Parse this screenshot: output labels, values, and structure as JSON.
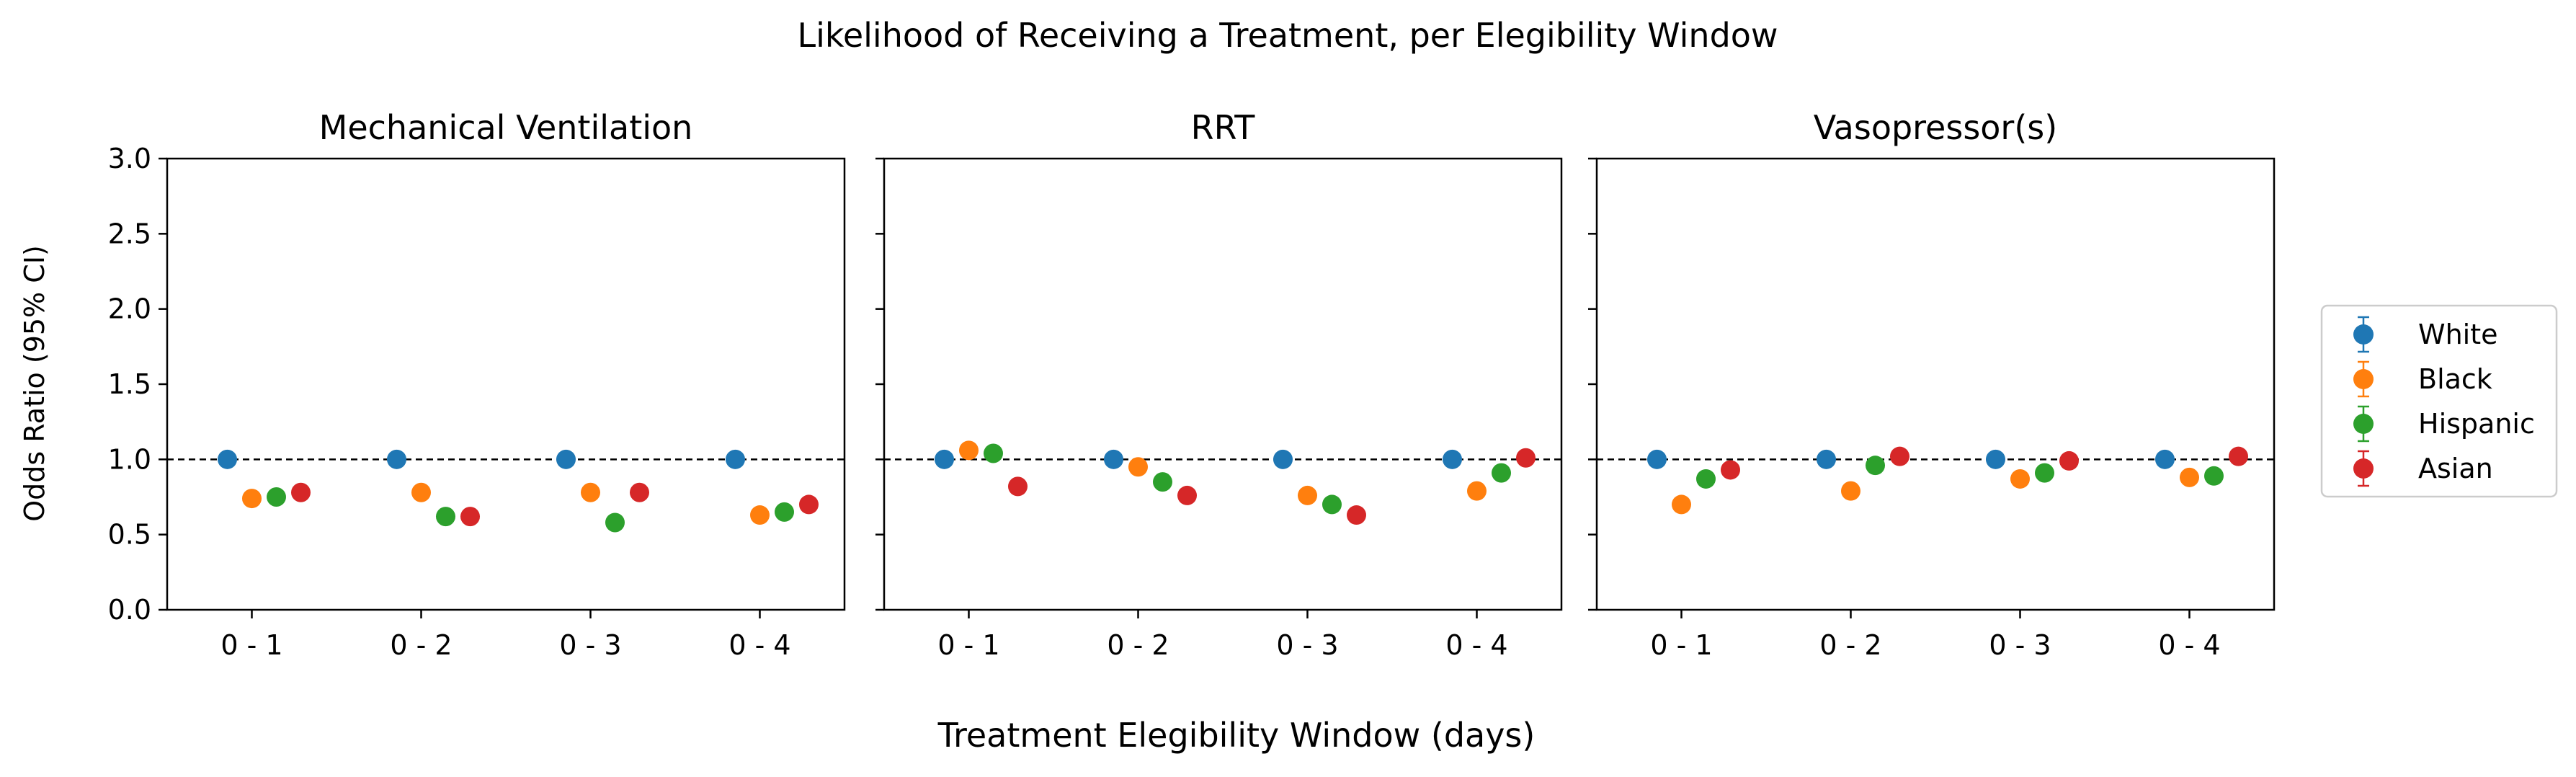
{
  "chart_data": {
    "type": "scatter",
    "title": "Likelihood of Receiving a Treatment, per Elegibility Window",
    "xlabel": "Treatment Elegibility Window (days)",
    "ylabel": "Odds Ratio (95% CI)",
    "ylim": [
      0,
      3
    ],
    "yticks": [
      "0.0",
      "0.5",
      "1.0",
      "1.5",
      "2.0",
      "2.5",
      "3.0"
    ],
    "categories": [
      "0 - 1",
      "0 - 2",
      "0 - 3",
      "0 - 4"
    ],
    "reference_line": 1.0,
    "legend_placement": "right",
    "series": [
      {
        "name": "White",
        "color": "#1f77b4"
      },
      {
        "name": "Black",
        "color": "#ff7f0e"
      },
      {
        "name": "Hispanic",
        "color": "#2ca02c"
      },
      {
        "name": "Asian",
        "color": "#d62728"
      }
    ],
    "panels": [
      {
        "title": "Mechanical Ventilation",
        "values": {
          "White": [
            1.0,
            1.0,
            1.0,
            1.0
          ],
          "Black": [
            0.74,
            0.78,
            0.78,
            0.63
          ],
          "Hispanic": [
            0.75,
            0.62,
            0.58,
            0.65
          ],
          "Asian": [
            0.78,
            0.62,
            0.78,
            0.7
          ]
        }
      },
      {
        "title": "RRT",
        "values": {
          "White": [
            1.0,
            1.0,
            1.0,
            1.0
          ],
          "Black": [
            1.06,
            0.95,
            0.76,
            0.79
          ],
          "Hispanic": [
            1.04,
            0.85,
            0.7,
            0.91
          ],
          "Asian": [
            0.82,
            0.76,
            0.63,
            1.01
          ]
        }
      },
      {
        "title": "Vasopressor(s)",
        "values": {
          "White": [
            1.0,
            1.0,
            1.0,
            1.0
          ],
          "Black": [
            0.7,
            0.79,
            0.87,
            0.88
          ],
          "Hispanic": [
            0.87,
            0.96,
            0.91,
            0.89
          ],
          "Asian": [
            0.93,
            1.02,
            0.99,
            1.02
          ]
        }
      }
    ]
  }
}
